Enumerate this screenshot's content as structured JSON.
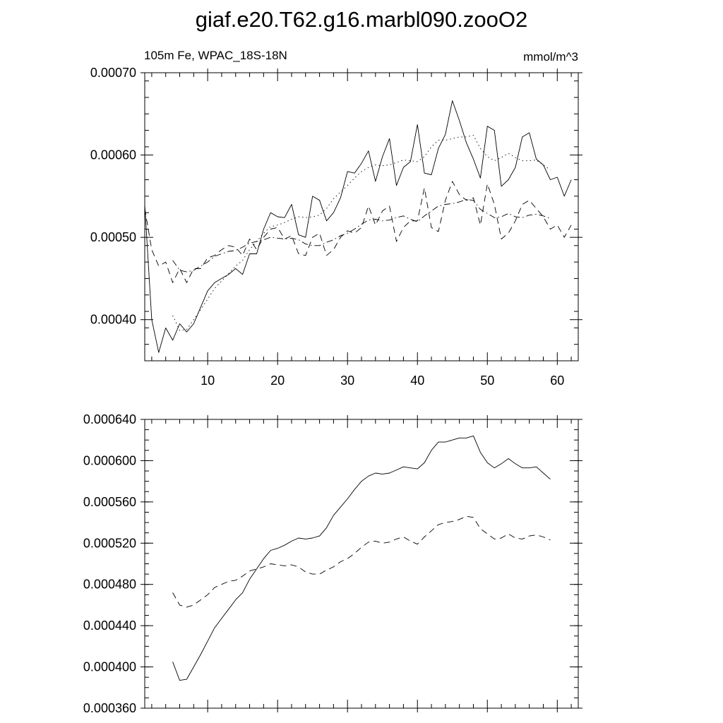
{
  "title": "giaf.e20.T62.g16.marbl090.zooO2",
  "chart_data": [
    {
      "type": "line",
      "left_label": "105m Fe, WPAC_18S-18N",
      "right_label": "mmol/m^3",
      "xlim": [
        1,
        63
      ],
      "ylim": [
        0.00035,
        0.0007
      ],
      "xticks": [
        "10",
        "20",
        "30",
        "40",
        "50",
        "60"
      ],
      "yticks": [
        "0.00040",
        "0.00050",
        "0.00060",
        "0.00070"
      ],
      "series": [
        {
          "style": "solid",
          "x": [
            1,
            2,
            3,
            4,
            5,
            6,
            7,
            8,
            9,
            10,
            11,
            12,
            13,
            14,
            15,
            16,
            17,
            18,
            19,
            20,
            21,
            22,
            23,
            24,
            25,
            26,
            27,
            28,
            29,
            30,
            31,
            32,
            33,
            34,
            35,
            36,
            37,
            38,
            39,
            40,
            41,
            42,
            43,
            44,
            45,
            46,
            47,
            48,
            49,
            50,
            51,
            52,
            53,
            54,
            55,
            56,
            57,
            58,
            59,
            60,
            61,
            62
          ],
          "y": [
            0.00054,
            0.0004,
            0.00036,
            0.00039,
            0.000375,
            0.000395,
            0.000385,
            0.000395,
            0.000415,
            0.000435,
            0.000445,
            0.00045,
            0.000455,
            0.000462,
            0.000455,
            0.00048,
            0.00048,
            0.00051,
            0.00053,
            0.000525,
            0.000524,
            0.00054,
            0.000503,
            0.0005,
            0.00055,
            0.000545,
            0.00052,
            0.00053,
            0.000548,
            0.00058,
            0.000578,
            0.00059,
            0.000605,
            0.000568,
            0.000598,
            0.00062,
            0.000563,
            0.000585,
            0.000592,
            0.000637,
            0.000578,
            0.000576,
            0.000608,
            0.000625,
            0.000666,
            0.000642,
            0.000615,
            0.000595,
            0.000572,
            0.000635,
            0.00063,
            0.000562,
            0.00057,
            0.000585,
            0.000622,
            0.000627,
            0.000595,
            0.000588,
            0.00057,
            0.000573,
            0.00055,
            0.00057
          ]
        },
        {
          "style": "dashed",
          "x": [
            1,
            2,
            3,
            4,
            5,
            6,
            7,
            8,
            9,
            10,
            11,
            12,
            13,
            14,
            15,
            16,
            17,
            18,
            19,
            20,
            21,
            22,
            23,
            24,
            25,
            26,
            27,
            28,
            29,
            30,
            31,
            32,
            33,
            34,
            35,
            36,
            37,
            38,
            39,
            40,
            41,
            42,
            43,
            44,
            45,
            46,
            47,
            48,
            49,
            50,
            51,
            52,
            53,
            54,
            55,
            56,
            57,
            58,
            59,
            60,
            61,
            62
          ],
          "y": [
            0.000535,
            0.000485,
            0.000465,
            0.00047,
            0.000445,
            0.000462,
            0.000445,
            0.000462,
            0.000462,
            0.000475,
            0.000478,
            0.000485,
            0.00049,
            0.000488,
            0.000478,
            0.000498,
            0.000485,
            0.0005,
            0.00051,
            0.000512,
            0.000498,
            0.000502,
            0.00048,
            0.000478,
            0.0005,
            0.000505,
            0.000478,
            0.000485,
            0.0005,
            0.000508,
            0.000505,
            0.000512,
            0.000538,
            0.000515,
            0.000532,
            0.000538,
            0.000495,
            0.000512,
            0.00052,
            0.00052,
            0.00056,
            0.000512,
            0.000507,
            0.000545,
            0.000568,
            0.000552,
            0.000545,
            0.000548,
            0.000515,
            0.000565,
            0.00054,
            0.000498,
            0.000505,
            0.00052,
            0.00054,
            0.000545,
            0.000535,
            0.000525,
            0.00051,
            0.000515,
            0.0005,
            0.000515
          ]
        },
        {
          "style": "dotted",
          "x": [
            5,
            6,
            7,
            8,
            9,
            10,
            11,
            12,
            13,
            14,
            15,
            16,
            17,
            18,
            19,
            20,
            21,
            22,
            23,
            24,
            25,
            26,
            27,
            28,
            29,
            30,
            31,
            32,
            33,
            34,
            35,
            36,
            37,
            38,
            39,
            40,
            41,
            42,
            43,
            44,
            45,
            46,
            47,
            48,
            49,
            50,
            51,
            52,
            53,
            54,
            55,
            56,
            57,
            58,
            59
          ],
          "y": [
            0.000405,
            0.000387,
            0.000388,
            0.0004,
            0.000412,
            0.000425,
            0.000438,
            0.000447,
            0.000456,
            0.000465,
            0.000472,
            0.000485,
            0.000495,
            0.000505,
            0.000513,
            0.000515,
            0.000518,
            0.000522,
            0.000525,
            0.000524,
            0.000525,
            0.000527,
            0.000535,
            0.000547,
            0.000555,
            0.000563,
            0.000572,
            0.00058,
            0.000585,
            0.000588,
            0.000587,
            0.000588,
            0.000591,
            0.000594,
            0.000593,
            0.000592,
            0.000598,
            0.00061,
            0.000618,
            0.000618,
            0.00062,
            0.000622,
            0.000622,
            0.000624,
            0.000608,
            0.000598,
            0.000593,
            0.000597,
            0.000602,
            0.000597,
            0.000593,
            0.000593,
            0.000594,
            0.000588,
            0.000582
          ]
        },
        {
          "style": "dashdot",
          "x": [
            5,
            6,
            7,
            8,
            9,
            10,
            11,
            12,
            13,
            14,
            15,
            16,
            17,
            18,
            19,
            20,
            21,
            22,
            23,
            24,
            25,
            26,
            27,
            28,
            29,
            30,
            31,
            32,
            33,
            34,
            35,
            36,
            37,
            38,
            39,
            40,
            41,
            42,
            43,
            44,
            45,
            46,
            47,
            48,
            49,
            50,
            51,
            52,
            53,
            54,
            55,
            56,
            57,
            58,
            59
          ],
          "y": [
            0.000472,
            0.00046,
            0.000458,
            0.00046,
            0.000465,
            0.00047,
            0.000477,
            0.00048,
            0.000483,
            0.000484,
            0.000488,
            0.000493,
            0.000495,
            0.000497,
            0.0005,
            0.000499,
            0.000498,
            0.000499,
            0.000497,
            0.000492,
            0.00049,
            0.00049,
            0.000494,
            0.000497,
            0.000502,
            0.000505,
            0.00051,
            0.000516,
            0.000521,
            0.000522,
            0.00052,
            0.000521,
            0.000524,
            0.000526,
            0.000522,
            0.000519,
            0.000526,
            0.000532,
            0.000538,
            0.00054,
            0.000541,
            0.000543,
            0.000546,
            0.000545,
            0.000534,
            0.000529,
            0.000524,
            0.000525,
            0.000529,
            0.000525,
            0.000524,
            0.000527,
            0.000528,
            0.000526,
            0.000523
          ]
        }
      ]
    },
    {
      "type": "line",
      "xlim": [
        1,
        63
      ],
      "ylim": [
        0.00036,
        0.00064
      ],
      "yticks": [
        "0.000360",
        "0.000400",
        "0.000440",
        "0.000480",
        "0.000520",
        "0.000560",
        "0.000600",
        "0.000640"
      ],
      "series": [
        {
          "style": "solid",
          "x": [
            5,
            6,
            7,
            8,
            9,
            10,
            11,
            12,
            13,
            14,
            15,
            16,
            17,
            18,
            19,
            20,
            21,
            22,
            23,
            24,
            25,
            26,
            27,
            28,
            29,
            30,
            31,
            32,
            33,
            34,
            35,
            36,
            37,
            38,
            39,
            40,
            41,
            42,
            43,
            44,
            45,
            46,
            47,
            48,
            49,
            50,
            51,
            52,
            53,
            54,
            55,
            56,
            57,
            58,
            59
          ],
          "y": [
            0.000405,
            0.000387,
            0.000388,
            0.0004,
            0.000412,
            0.000425,
            0.000438,
            0.000447,
            0.000456,
            0.000465,
            0.000472,
            0.000485,
            0.000495,
            0.000505,
            0.000513,
            0.000515,
            0.000518,
            0.000522,
            0.000525,
            0.000524,
            0.000525,
            0.000527,
            0.000535,
            0.000547,
            0.000555,
            0.000563,
            0.000572,
            0.00058,
            0.000585,
            0.000588,
            0.000587,
            0.000588,
            0.000591,
            0.000594,
            0.000593,
            0.000592,
            0.000598,
            0.00061,
            0.000618,
            0.000618,
            0.00062,
            0.000622,
            0.000622,
            0.000624,
            0.000608,
            0.000598,
            0.000593,
            0.000597,
            0.000602,
            0.000597,
            0.000593,
            0.000593,
            0.000594,
            0.000588,
            0.000582
          ]
        },
        {
          "style": "dashed",
          "x": [
            5,
            6,
            7,
            8,
            9,
            10,
            11,
            12,
            13,
            14,
            15,
            16,
            17,
            18,
            19,
            20,
            21,
            22,
            23,
            24,
            25,
            26,
            27,
            28,
            29,
            30,
            31,
            32,
            33,
            34,
            35,
            36,
            37,
            38,
            39,
            40,
            41,
            42,
            43,
            44,
            45,
            46,
            47,
            48,
            49,
            50,
            51,
            52,
            53,
            54,
            55,
            56,
            57,
            58,
            59
          ],
          "y": [
            0.000472,
            0.00046,
            0.000458,
            0.00046,
            0.000465,
            0.00047,
            0.000477,
            0.00048,
            0.000483,
            0.000484,
            0.000488,
            0.000493,
            0.000495,
            0.000497,
            0.0005,
            0.000499,
            0.000498,
            0.000499,
            0.000497,
            0.000492,
            0.00049,
            0.00049,
            0.000494,
            0.000497,
            0.000502,
            0.000505,
            0.00051,
            0.000516,
            0.000521,
            0.000522,
            0.00052,
            0.000521,
            0.000524,
            0.000526,
            0.000522,
            0.000519,
            0.000526,
            0.000532,
            0.000538,
            0.00054,
            0.000541,
            0.000543,
            0.000546,
            0.000545,
            0.000534,
            0.000529,
            0.000524,
            0.000525,
            0.000529,
            0.000525,
            0.000524,
            0.000527,
            0.000528,
            0.000526,
            0.000523
          ]
        }
      ]
    }
  ]
}
